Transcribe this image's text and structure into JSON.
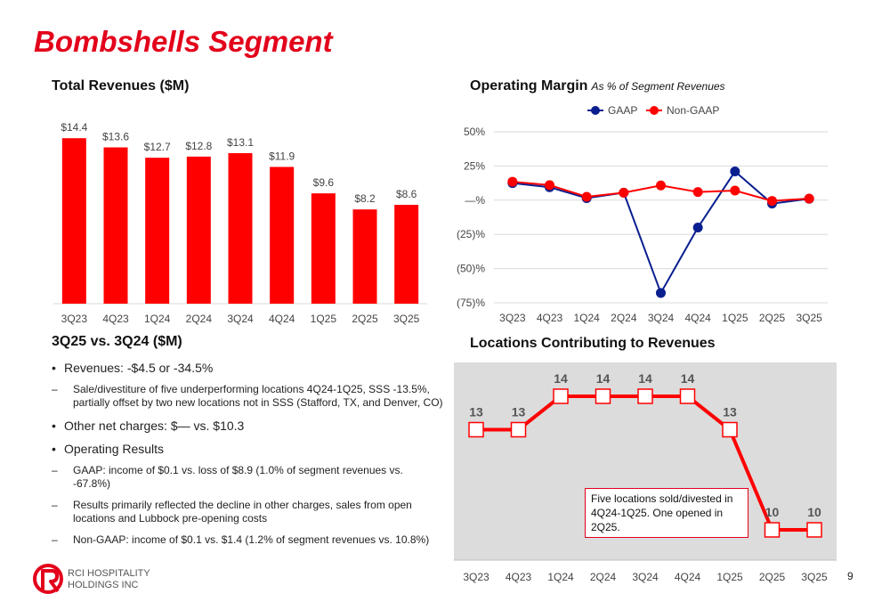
{
  "page": {
    "title": "Bombshells Segment",
    "page_number": "9",
    "brand_primary": "#e3001b"
  },
  "logo": {
    "text_line1": "RCI HOSPITALITY",
    "text_line2": "HOLDINGS INC"
  },
  "revenue_section": {
    "title": "Total Revenues ($M)"
  },
  "margin_section": {
    "title": "Operating Margin",
    "subtitle": "As % of Segment Revenues"
  },
  "locations_section": {
    "title": "Locations Contributing to Revenues",
    "note": "Five locations sold/divested in 4Q24-1Q25. One opened in 2Q25."
  },
  "comparison": {
    "title": "3Q25 vs. 3Q24 ($M)",
    "items": [
      {
        "text": "Revenues: -$4.5 or -34.5%",
        "subs": [
          "Sale/divestiture of five underperforming locations 4Q24-1Q25, SSS -13.5%, partially offset by two new locations not in SSS (Stafford, TX, and Denver, CO)"
        ]
      },
      {
        "text": "Other net charges: $— vs. $10.3",
        "subs": []
      },
      {
        "text": "Operating Results",
        "subs": [
          "GAAP: income of $0.1 vs. loss of $8.9 (1.0% of segment revenues vs. -67.8%)",
          "Results primarily reflected the decline in other charges, sales from open locations and Lubbock pre-opening costs",
          "Non-GAAP: income of $0.1 vs. $1.4 (1.2% of segment revenues vs. 10.8%)"
        ]
      }
    ]
  },
  "chart_data": [
    {
      "type": "bar",
      "title": "Total Revenues ($M)",
      "categories": [
        "3Q23",
        "4Q23",
        "1Q24",
        "2Q24",
        "3Q24",
        "4Q24",
        "1Q25",
        "2Q25",
        "3Q25"
      ],
      "values": [
        14.4,
        13.6,
        12.7,
        12.8,
        13.1,
        11.9,
        9.6,
        8.2,
        8.6
      ],
      "labels": [
        "$14.4",
        "$13.6",
        "$12.7",
        "$12.8",
        "$13.1",
        "$11.9",
        "$9.6",
        "$8.2",
        "$8.6"
      ],
      "ylim": [
        0,
        15.5
      ],
      "color": "#ff0000"
    },
    {
      "type": "line",
      "title": "Operating Margin",
      "subtitle": "As % of Segment Revenues",
      "categories": [
        "3Q23",
        "4Q23",
        "1Q24",
        "2Q24",
        "3Q24",
        "4Q24",
        "1Q25",
        "2Q25",
        "3Q25"
      ],
      "series": [
        {
          "name": "GAAP",
          "color": "#0a1f8f",
          "values": [
            12.5,
            9.5,
            1.5,
            5.5,
            -67.8,
            -20.0,
            21.0,
            -2.5,
            1.0
          ]
        },
        {
          "name": "Non-GAAP",
          "color": "#ff0000",
          "values": [
            13.5,
            11.0,
            2.5,
            5.5,
            10.8,
            6.0,
            7.0,
            -0.5,
            1.2
          ]
        }
      ],
      "ylim": [
        -75,
        50
      ],
      "yticks": [
        50,
        25,
        0,
        -25,
        -50,
        -75
      ],
      "ytick_labels": [
        "50%",
        "25%",
        "—%",
        "(25)%",
        "(50)%",
        "(75)%"
      ],
      "legend": "top-center"
    },
    {
      "type": "line",
      "title": "Locations Contributing to Revenues",
      "categories": [
        "3Q23",
        "4Q23",
        "1Q24",
        "2Q24",
        "3Q24",
        "4Q24",
        "1Q25",
        "2Q25",
        "3Q25"
      ],
      "values": [
        13,
        13,
        14,
        14,
        14,
        14,
        13,
        10,
        10
      ],
      "ylim": [
        9.5,
        14.5
      ],
      "color": "#ff0000",
      "background": "#dcdcdc"
    }
  ]
}
